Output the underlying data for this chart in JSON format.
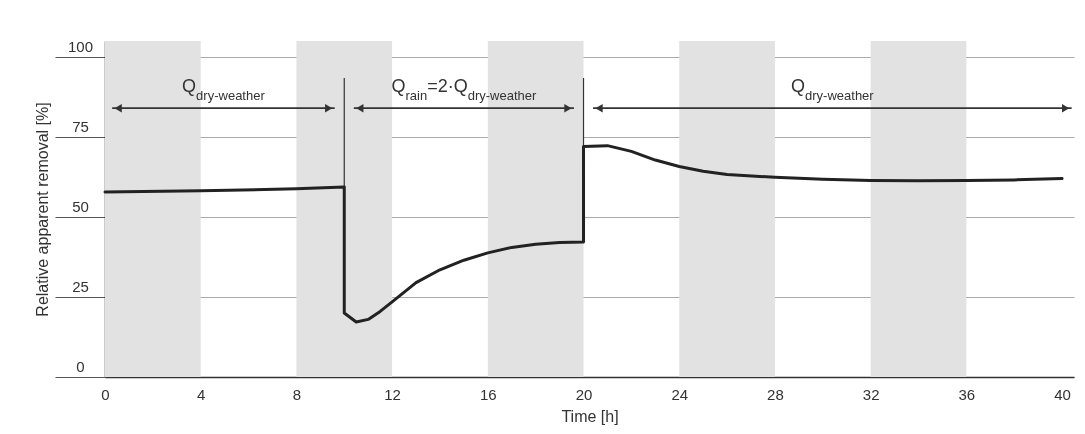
{
  "chart_data": {
    "type": "line",
    "xlabel": "Time [h]",
    "ylabel": "Relative apparent removal [%]",
    "xlim": [
      0,
      40.5
    ],
    "xticks": [
      0,
      4,
      8,
      12,
      16,
      20,
      24,
      28,
      32,
      36,
      40
    ],
    "ylim": [
      0,
      105
    ],
    "yticks": [
      0,
      25,
      50,
      75,
      100
    ],
    "grid": "y",
    "line_style": "solid",
    "marker": "none",
    "series": [
      {
        "color": "#222222",
        "x": [
          0,
          4,
          8,
          10,
          10,
          10.5,
          11,
          11.5,
          12,
          13,
          14,
          15,
          16,
          17,
          18,
          19,
          20,
          20,
          21,
          22,
          23,
          24,
          25,
          26,
          28,
          30,
          32,
          34,
          36,
          38,
          40
        ],
        "values": [
          57.8,
          58.2,
          58.8,
          59.4,
          20,
          17.2,
          18,
          20.5,
          23.5,
          29.5,
          33.5,
          36.5,
          38.8,
          40.5,
          41.5,
          42,
          42.2,
          72,
          72.3,
          70.5,
          67.8,
          65.8,
          64.3,
          63.3,
          62.4,
          61.8,
          61.4,
          61.3,
          61.4,
          61.6,
          62
        ]
      }
    ],
    "bands": [
      {
        "axis": "x",
        "from": 0,
        "to": 4,
        "color": "#e2e2e2"
      },
      {
        "axis": "x",
        "from": 8,
        "to": 12,
        "color": "#e2e2e2"
      },
      {
        "axis": "x",
        "from": 16,
        "to": 20,
        "color": "#e2e2e2"
      },
      {
        "axis": "x",
        "from": 24,
        "to": 28,
        "color": "#e2e2e2"
      },
      {
        "axis": "x",
        "from": 32,
        "to": 36,
        "color": "#e2e2e2"
      }
    ],
    "ref_lines": [
      {
        "axis": "x",
        "value": 10,
        "color": "#333333"
      },
      {
        "axis": "x",
        "value": 20,
        "color": "#333333"
      }
    ],
    "annotations": [
      "Q$_{dry-weather}$",
      "Q$_{rain}$=2·Q$_{dry-weather}$",
      "Q$_{dry-weather}$"
    ]
  }
}
